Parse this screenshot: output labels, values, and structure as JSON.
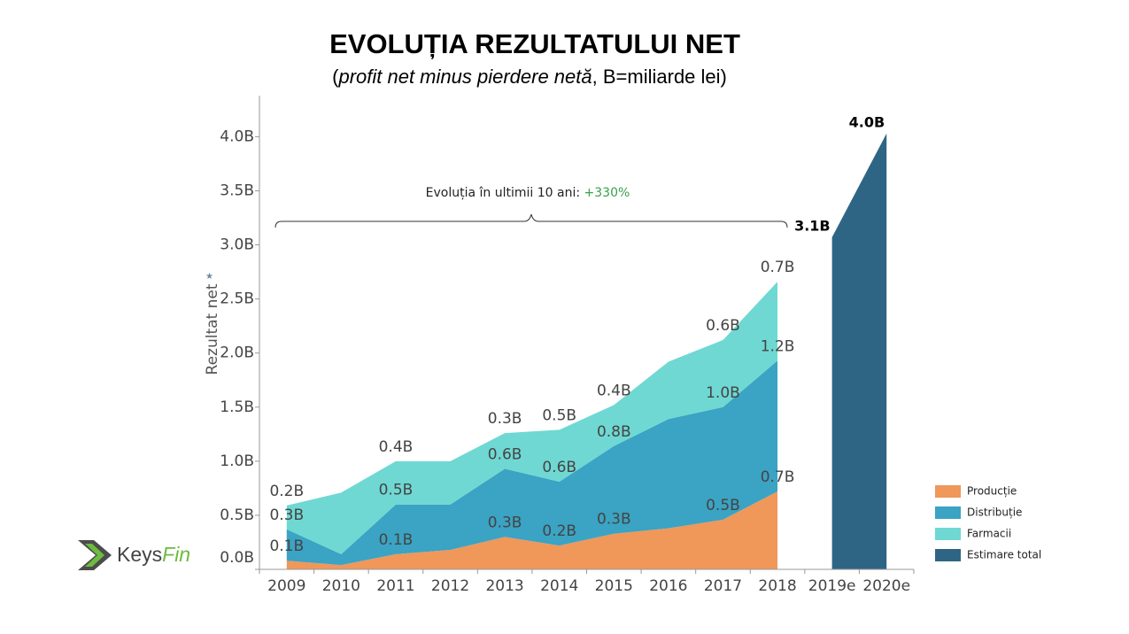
{
  "chart_data": {
    "type": "stacked_area",
    "title": "EVOLUȚIA REZULTATULUI NET",
    "subtitle": [
      "(",
      "profit net minus pierdere netă",
      ", B=miliarde lei)"
    ],
    "y_label": "Rezultat net",
    "annotation": {
      "text": "Evoluția în ultimii 10 ani: ",
      "highlight": "+330%"
    },
    "logo": [
      "Keys",
      "Fin"
    ],
    "categories": [
      "2009",
      "2010",
      "2011",
      "2012",
      "2013",
      "2014",
      "2015",
      "2016",
      "2017",
      "2018",
      "2019e",
      "2020e"
    ],
    "series": [
      {
        "name": "Producție",
        "color": "#f0975a",
        "values": [
          0.08,
          0.04,
          0.14,
          0.18,
          0.3,
          0.22,
          0.33,
          0.38,
          0.46,
          0.72,
          null,
          null
        ],
        "value_labels": [
          "0.1B",
          null,
          "0.1B",
          null,
          "0.3B",
          "0.2B",
          "0.3B",
          null,
          "0.5B",
          "0.7B",
          null,
          null
        ]
      },
      {
        "name": "Distribuție",
        "color": "#3ba3c3",
        "values": [
          0.29,
          0.1,
          0.46,
          0.42,
          0.63,
          0.59,
          0.81,
          1.01,
          1.04,
          1.21,
          null,
          null
        ],
        "value_labels": [
          "0.3B",
          null,
          "0.5B",
          null,
          "0.6B",
          "0.6B",
          "0.8B",
          null,
          "1.0B",
          "1.2B",
          null,
          null
        ]
      },
      {
        "name": "Farmacii",
        "color": "#6fd8d3",
        "values": [
          0.22,
          0.57,
          0.4,
          0.4,
          0.33,
          0.48,
          0.38,
          0.53,
          0.62,
          0.73,
          null,
          null
        ],
        "value_labels": [
          "0.2B",
          null,
          "0.4B",
          null,
          "0.3B",
          "0.5B",
          "0.4B",
          null,
          "0.6B",
          "0.7B",
          null,
          null
        ]
      },
      {
        "name": "Estimare total",
        "color": "#2e6584",
        "stack": false,
        "values": [
          null,
          null,
          null,
          null,
          null,
          null,
          null,
          null,
          null,
          null,
          3.07,
          4.03
        ],
        "value_labels": [
          null,
          null,
          null,
          null,
          null,
          null,
          null,
          null,
          null,
          null,
          "3.1B",
          "4.0B"
        ]
      }
    ],
    "ylim": [
      0,
      4.38
    ],
    "yticks": [
      {
        "value": 0,
        "label": "0.0B"
      },
      {
        "value": 0.5,
        "label": "0.5B"
      },
      {
        "value": 1,
        "label": "1.0B"
      },
      {
        "value": 1.5,
        "label": "1.5B"
      },
      {
        "value": 2,
        "label": "2.0B"
      },
      {
        "value": 2.5,
        "label": "2.5B"
      },
      {
        "value": 3,
        "label": "3.0B"
      },
      {
        "value": 3.5,
        "label": "3.5B"
      },
      {
        "value": 4,
        "label": "4.0B"
      }
    ],
    "grid": false,
    "legend": "right-bottom"
  }
}
